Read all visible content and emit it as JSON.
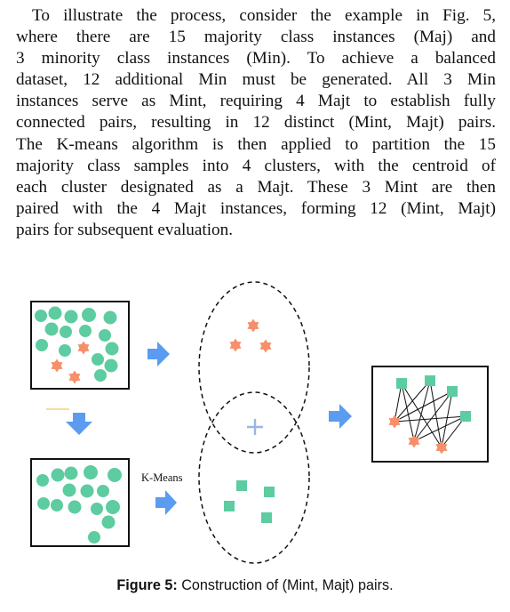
{
  "paragraph": {
    "lines": [
      "To illustrate the process, consider the example in Fig. 5,",
      "where there are 15 majority class instances (Maj) and",
      "3 minority class instances (Min). To achieve a balanced",
      "dataset, 12 additional Min must be generated. All 3 Min",
      "instances serve as Mint, requiring 4 Majt to establish fully",
      "connected pairs, resulting in 12 distinct (Mint, Majt) pairs.",
      "The K-means algorithm is then applied to partition the 15",
      "majority class samples into 4 clusters, with the centroid of",
      "each cluster designated as a Majt. These 3 Mint are then",
      "paired with the 4 Majt instances, forming 12 (Mint, Majt)",
      "pairs for subsequent evaluation."
    ]
  },
  "figure": {
    "kmeans_label": "K-Means",
    "caption_label": "Figure 5:",
    "caption_text": "Construction of (Mint, Majt) pairs.",
    "colors": {
      "majority": "#5dcca0",
      "minority": "#f5906a",
      "arrow": "#5b9bf0",
      "centroid": "#9ab6e6",
      "stroke": "#111111"
    }
  }
}
